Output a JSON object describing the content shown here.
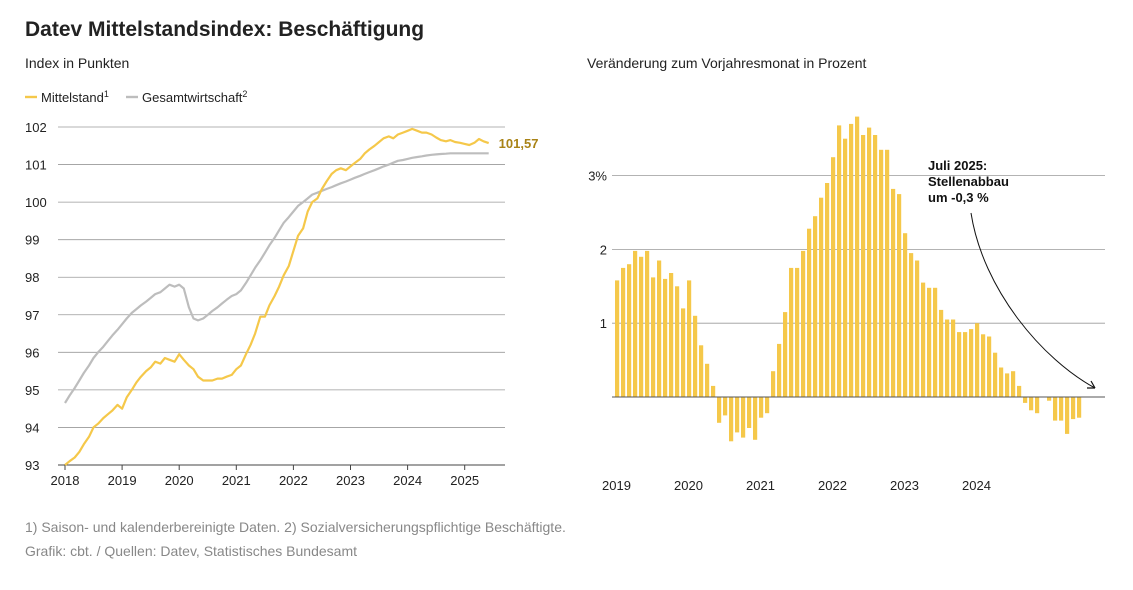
{
  "page": {
    "title": "Datev Mittelstandsindex: Beschäftigung",
    "footnote": "1) Saison- und kalenderbereinigte Daten. 2) Sozialversicherungspflichtige Beschäftigte.",
    "source": "Grafik: cbt. / Quellen: Datev, Statistisches Bundesamt"
  },
  "chart_data": [
    {
      "type": "line",
      "subtitle": "Index in Punkten",
      "xlim": [
        2018.0,
        2025.75
      ],
      "ylim": [
        93,
        102
      ],
      "x_ticks": [
        "2018",
        "2019",
        "2020",
        "2021",
        "2022",
        "2023",
        "2024",
        "2025"
      ],
      "y_ticks": [
        "93",
        "94",
        "95",
        "96",
        "97",
        "98",
        "99",
        "100",
        "101",
        "102"
      ],
      "end_label": "101,57",
      "series": [
        {
          "name": "Mittelstand",
          "sup": "1",
          "color": "#f5c84a",
          "points": [
            [
              2018.0,
              93.0
            ],
            [
              2018.08,
              93.1
            ],
            [
              2018.17,
              93.2
            ],
            [
              2018.25,
              93.35
            ],
            [
              2018.33,
              93.55
            ],
            [
              2018.42,
              93.75
            ],
            [
              2018.5,
              94.0
            ],
            [
              2018.58,
              94.1
            ],
            [
              2018.67,
              94.25
            ],
            [
              2018.75,
              94.35
            ],
            [
              2018.83,
              94.45
            ],
            [
              2018.92,
              94.6
            ],
            [
              2019.0,
              94.5
            ],
            [
              2019.08,
              94.8
            ],
            [
              2019.17,
              95.0
            ],
            [
              2019.25,
              95.2
            ],
            [
              2019.33,
              95.35
            ],
            [
              2019.42,
              95.5
            ],
            [
              2019.5,
              95.6
            ],
            [
              2019.58,
              95.75
            ],
            [
              2019.67,
              95.7
            ],
            [
              2019.75,
              95.85
            ],
            [
              2019.83,
              95.8
            ],
            [
              2019.92,
              95.75
            ],
            [
              2020.0,
              95.95
            ],
            [
              2020.08,
              95.8
            ],
            [
              2020.17,
              95.65
            ],
            [
              2020.25,
              95.55
            ],
            [
              2020.33,
              95.35
            ],
            [
              2020.42,
              95.25
            ],
            [
              2020.5,
              95.25
            ],
            [
              2020.58,
              95.25
            ],
            [
              2020.67,
              95.3
            ],
            [
              2020.75,
              95.3
            ],
            [
              2020.83,
              95.35
            ],
            [
              2020.92,
              95.4
            ],
            [
              2021.0,
              95.55
            ],
            [
              2021.08,
              95.65
            ],
            [
              2021.17,
              95.95
            ],
            [
              2021.25,
              96.2
            ],
            [
              2021.33,
              96.5
            ],
            [
              2021.42,
              96.95
            ],
            [
              2021.5,
              96.95
            ],
            [
              2021.58,
              97.25
            ],
            [
              2021.67,
              97.5
            ],
            [
              2021.75,
              97.75
            ],
            [
              2021.83,
              98.05
            ],
            [
              2021.92,
              98.3
            ],
            [
              2022.0,
              98.7
            ],
            [
              2022.08,
              99.1
            ],
            [
              2022.17,
              99.3
            ],
            [
              2022.25,
              99.75
            ],
            [
              2022.33,
              100.0
            ],
            [
              2022.42,
              100.1
            ],
            [
              2022.5,
              100.35
            ],
            [
              2022.58,
              100.55
            ],
            [
              2022.67,
              100.75
            ],
            [
              2022.75,
              100.85
            ],
            [
              2022.83,
              100.9
            ],
            [
              2022.92,
              100.85
            ],
            [
              2023.0,
              100.95
            ],
            [
              2023.08,
              101.05
            ],
            [
              2023.17,
              101.15
            ],
            [
              2023.25,
              101.3
            ],
            [
              2023.33,
              101.4
            ],
            [
              2023.42,
              101.5
            ],
            [
              2023.5,
              101.6
            ],
            [
              2023.58,
              101.7
            ],
            [
              2023.67,
              101.75
            ],
            [
              2023.75,
              101.7
            ],
            [
              2023.83,
              101.8
            ],
            [
              2023.92,
              101.85
            ],
            [
              2024.0,
              101.9
            ],
            [
              2024.08,
              101.95
            ],
            [
              2024.17,
              101.9
            ],
            [
              2024.25,
              101.85
            ],
            [
              2024.33,
              101.85
            ],
            [
              2024.42,
              101.8
            ],
            [
              2024.5,
              101.72
            ],
            [
              2024.58,
              101.65
            ],
            [
              2024.67,
              101.62
            ],
            [
              2024.75,
              101.65
            ],
            [
              2024.83,
              101.6
            ],
            [
              2024.92,
              101.58
            ],
            [
              2025.0,
              101.55
            ],
            [
              2025.08,
              101.52
            ],
            [
              2025.17,
              101.58
            ],
            [
              2025.25,
              101.68
            ],
            [
              2025.33,
              101.62
            ],
            [
              2025.42,
              101.57
            ]
          ]
        },
        {
          "name": "Gesamtwirtschaft",
          "sup": "2",
          "color": "#bdbdbd",
          "points": [
            [
              2018.0,
              94.65
            ],
            [
              2018.08,
              94.85
            ],
            [
              2018.17,
              95.05
            ],
            [
              2018.25,
              95.25
            ],
            [
              2018.33,
              95.45
            ],
            [
              2018.42,
              95.65
            ],
            [
              2018.5,
              95.85
            ],
            [
              2018.58,
              96.0
            ],
            [
              2018.67,
              96.15
            ],
            [
              2018.75,
              96.3
            ],
            [
              2018.83,
              96.45
            ],
            [
              2018.92,
              96.6
            ],
            [
              2019.0,
              96.75
            ],
            [
              2019.08,
              96.9
            ],
            [
              2019.17,
              97.05
            ],
            [
              2019.25,
              97.15
            ],
            [
              2019.33,
              97.25
            ],
            [
              2019.42,
              97.35
            ],
            [
              2019.5,
              97.45
            ],
            [
              2019.58,
              97.55
            ],
            [
              2019.67,
              97.6
            ],
            [
              2019.75,
              97.7
            ],
            [
              2019.83,
              97.8
            ],
            [
              2019.92,
              97.75
            ],
            [
              2020.0,
              97.8
            ],
            [
              2020.08,
              97.7
            ],
            [
              2020.17,
              97.2
            ],
            [
              2020.25,
              96.9
            ],
            [
              2020.33,
              96.85
            ],
            [
              2020.42,
              96.9
            ],
            [
              2020.5,
              97.0
            ],
            [
              2020.58,
              97.1
            ],
            [
              2020.67,
              97.2
            ],
            [
              2020.75,
              97.3
            ],
            [
              2020.83,
              97.4
            ],
            [
              2020.92,
              97.5
            ],
            [
              2021.0,
              97.55
            ],
            [
              2021.08,
              97.65
            ],
            [
              2021.17,
              97.85
            ],
            [
              2021.25,
              98.05
            ],
            [
              2021.33,
              98.25
            ],
            [
              2021.42,
              98.45
            ],
            [
              2021.5,
              98.65
            ],
            [
              2021.58,
              98.85
            ],
            [
              2021.67,
              99.05
            ],
            [
              2021.75,
              99.25
            ],
            [
              2021.83,
              99.45
            ],
            [
              2021.92,
              99.6
            ],
            [
              2022.0,
              99.75
            ],
            [
              2022.08,
              99.9
            ],
            [
              2022.17,
              100.0
            ],
            [
              2022.25,
              100.1
            ],
            [
              2022.33,
              100.2
            ],
            [
              2022.42,
              100.25
            ],
            [
              2022.5,
              100.3
            ],
            [
              2022.58,
              100.35
            ],
            [
              2022.67,
              100.4
            ],
            [
              2022.75,
              100.45
            ],
            [
              2022.83,
              100.5
            ],
            [
              2022.92,
              100.55
            ],
            [
              2023.0,
              100.6
            ],
            [
              2023.08,
              100.65
            ],
            [
              2023.17,
              100.7
            ],
            [
              2023.25,
              100.75
            ],
            [
              2023.33,
              100.8
            ],
            [
              2023.42,
              100.85
            ],
            [
              2023.5,
              100.9
            ],
            [
              2023.58,
              100.95
            ],
            [
              2023.67,
              101.0
            ],
            [
              2023.75,
              101.05
            ],
            [
              2023.83,
              101.1
            ],
            [
              2023.92,
              101.12
            ],
            [
              2024.0,
              101.15
            ],
            [
              2024.08,
              101.18
            ],
            [
              2024.17,
              101.2
            ],
            [
              2024.25,
              101.22
            ],
            [
              2024.33,
              101.24
            ],
            [
              2024.42,
              101.26
            ],
            [
              2024.5,
              101.27
            ],
            [
              2024.58,
              101.28
            ],
            [
              2024.67,
              101.29
            ],
            [
              2024.75,
              101.3
            ],
            [
              2024.83,
              101.3
            ],
            [
              2024.92,
              101.3
            ],
            [
              2025.0,
              101.3
            ],
            [
              2025.08,
              101.3
            ],
            [
              2025.17,
              101.3
            ],
            [
              2025.25,
              101.3
            ],
            [
              2025.33,
              101.3
            ],
            [
              2025.42,
              101.3
            ]
          ]
        }
      ]
    },
    {
      "type": "bar",
      "subtitle": "Veränderung zum Vorjahresmonat in Prozent",
      "start_year": 2019,
      "ylim": [
        -0.7,
        3.7
      ],
      "y_ticks": [
        {
          "value": 1,
          "label": "1"
        },
        {
          "value": 2,
          "label": "2"
        },
        {
          "value": 3,
          "label": "3%"
        }
      ],
      "x_ticks": [
        "2019",
        "2020",
        "2021",
        "2022",
        "2023",
        "2024"
      ],
      "color": "#f5c84a",
      "values": [
        1.58,
        1.75,
        1.8,
        1.98,
        1.9,
        1.98,
        1.62,
        1.85,
        1.6,
        1.68,
        1.5,
        1.2,
        1.58,
        1.1,
        0.7,
        0.45,
        0.15,
        -0.35,
        -0.25,
        -0.6,
        -0.48,
        -0.55,
        -0.42,
        -0.58,
        -0.28,
        -0.22,
        0.35,
        0.72,
        1.15,
        1.75,
        1.75,
        1.98,
        2.28,
        2.45,
        2.7,
        2.9,
        3.25,
        3.68,
        3.5,
        3.7,
        3.8,
        3.55,
        3.65,
        3.55,
        3.35,
        3.35,
        2.82,
        2.75,
        2.22,
        1.95,
        1.85,
        1.55,
        1.48,
        1.48,
        1.18,
        1.05,
        1.05,
        0.88,
        0.88,
        0.92,
        1.0,
        0.85,
        0.82,
        0.6,
        0.4,
        0.32,
        0.35,
        0.15,
        -0.08,
        -0.18,
        -0.22,
        0.0,
        -0.05,
        -0.32,
        -0.32,
        -0.5,
        -0.3,
        -0.28
      ]
    }
  ],
  "annotation": {
    "lines": [
      "Juli 2025:",
      "Stellenabbau",
      "um -0,3 %"
    ]
  }
}
